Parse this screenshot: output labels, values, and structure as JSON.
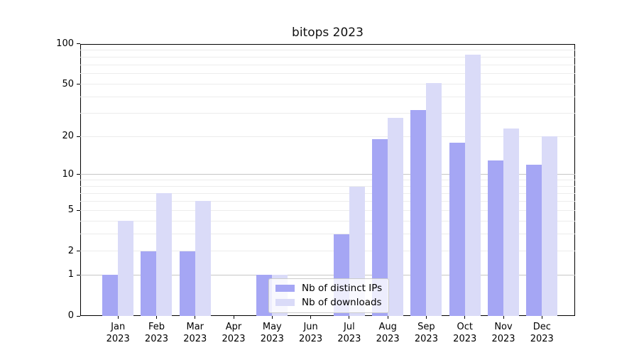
{
  "figure": {
    "title": "bitops 2023"
  },
  "chart_data": {
    "type": "bar",
    "title": "bitops 2023",
    "categories": [
      "Jan 2023",
      "Feb 2023",
      "Mar 2023",
      "Apr 2023",
      "May 2023",
      "Jun 2023",
      "Jul 2023",
      "Aug 2023",
      "Sep 2023",
      "Oct 2023",
      "Nov 2023",
      "Dec 2023"
    ],
    "month_labels": [
      "Jan",
      "Feb",
      "Mar",
      "Apr",
      "May",
      "Jun",
      "Jul",
      "Aug",
      "Sep",
      "Oct",
      "Nov",
      "Dec"
    ],
    "year_label": "2023",
    "series": [
      {
        "name": "Nb of distinct IPs",
        "color": "#a5a6f4",
        "values": [
          1,
          2,
          2,
          0,
          1,
          0,
          3,
          19,
          32,
          18,
          13,
          12
        ]
      },
      {
        "name": "Nb of downloads",
        "color": "#dadbf8",
        "values": [
          4,
          7,
          6,
          0,
          1,
          0,
          8,
          28,
          51,
          83,
          23,
          20
        ]
      }
    ],
    "xlabel": "",
    "ylabel": "",
    "ylim": [
      0,
      100
    ],
    "yscale": "log1p",
    "yticks": [
      100,
      50,
      20,
      10,
      5,
      2,
      1,
      0
    ],
    "major_gridlines": [
      1,
      10
    ],
    "minor_gridlines": [
      2,
      3,
      4,
      5,
      6,
      7,
      8,
      9,
      20,
      30,
      40,
      50,
      60,
      70,
      80,
      90
    ],
    "grid": true,
    "legend_position": "lower center"
  },
  "colors": {
    "background": "#ffffff",
    "spine": "#000000",
    "major_grid": "#c6c6c6",
    "minor_grid": "#ececec",
    "legend_border": "#cccccc"
  }
}
